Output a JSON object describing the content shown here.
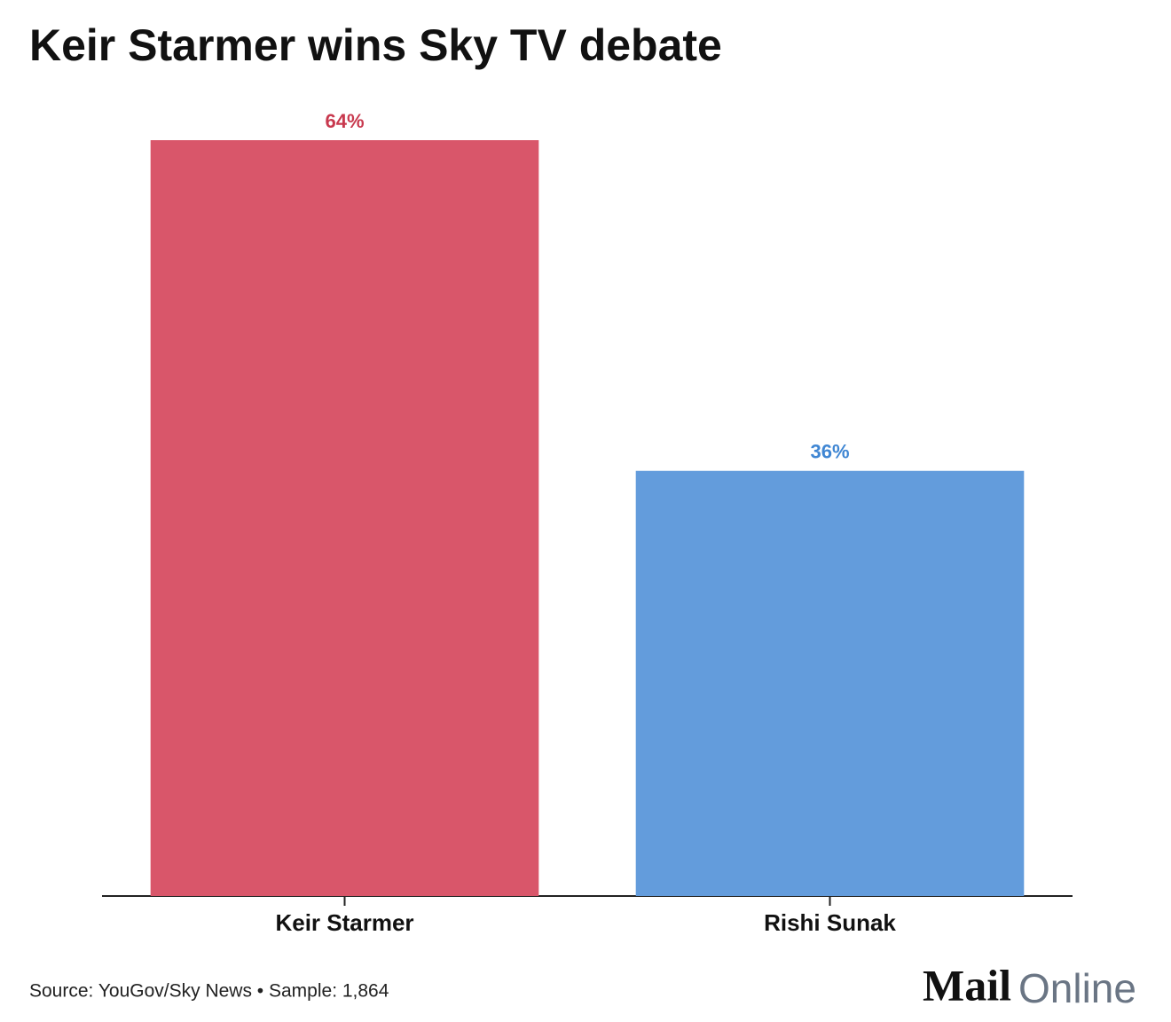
{
  "chart_data": {
    "type": "bar",
    "title": "Keir Starmer wins Sky TV debate",
    "categories": [
      "Keir Starmer",
      "Rishi Sunak"
    ],
    "values": [
      64,
      36
    ],
    "value_labels": [
      "64%",
      "36%"
    ],
    "colors": [
      "#d9566a",
      "#639cdc"
    ],
    "label_colors": [
      "#c8394e",
      "#3f86d3"
    ],
    "ylim": [
      0,
      64
    ],
    "source": "Source: YouGov/Sky News • Sample: 1,864",
    "brand": [
      "Mail",
      "Online"
    ]
  }
}
